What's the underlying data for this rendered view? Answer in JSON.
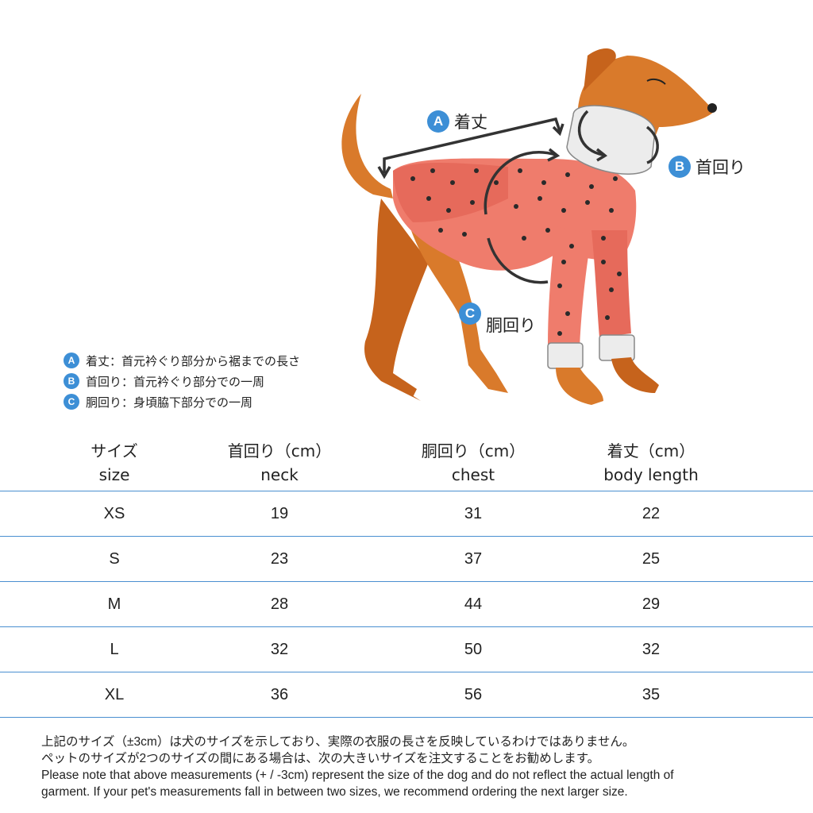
{
  "callouts": {
    "a": {
      "letter": "A",
      "label": "着丈"
    },
    "b": {
      "letter": "B",
      "label": "首回り"
    },
    "c": {
      "letter": "C",
      "label": "胴回り"
    }
  },
  "legend": [
    {
      "letter": "A",
      "text": "着丈：首元衿ぐり部分から裾までの長さ"
    },
    {
      "letter": "B",
      "text": "首回り：首元衿ぐり部分での一周"
    },
    {
      "letter": "C",
      "text": "胴回り：身頃脇下部分での一周"
    }
  ],
  "table": {
    "headers": [
      {
        "jp": "サイズ",
        "en": "size"
      },
      {
        "jp": "首回り（cm）",
        "en": "neck"
      },
      {
        "jp": "胴回り（cm）",
        "en": "chest"
      },
      {
        "jp": "着丈（cm）",
        "en": "body length"
      }
    ],
    "rows": [
      [
        "XS",
        "19",
        "31",
        "22"
      ],
      [
        "S",
        "23",
        "37",
        "25"
      ],
      [
        "M",
        "28",
        "44",
        "29"
      ],
      [
        "L",
        "32",
        "50",
        "32"
      ],
      [
        "XL",
        "36",
        "56",
        "35"
      ]
    ]
  },
  "notes": [
    "上記のサイズ（±3cm）は犬のサイズを示しており、実際の衣服の長さを反映しているわけではありません。",
    "ペットのサイズが2つのサイズの間にある場合は、次の大きいサイズを注文することをお勧めします。",
    "Please note that above measurements (+ / -3cm) represent the size of the dog and do not reflect the actual length of",
    "garment. If your pet's measurements fall in between two sizes, we recommend ordering the next larger size."
  ],
  "colors": {
    "accent": "#3d8fd6",
    "dog_fur": "#d97a2b",
    "sweater": "#ef7c6c",
    "cuff": "#ececec",
    "table_line": "#4a8fd0"
  },
  "icons": [
    "dog-sweater-illustration",
    "length-arrow-icon",
    "neck-circle-arrow-icon",
    "chest-circle-arrow-icon"
  ]
}
